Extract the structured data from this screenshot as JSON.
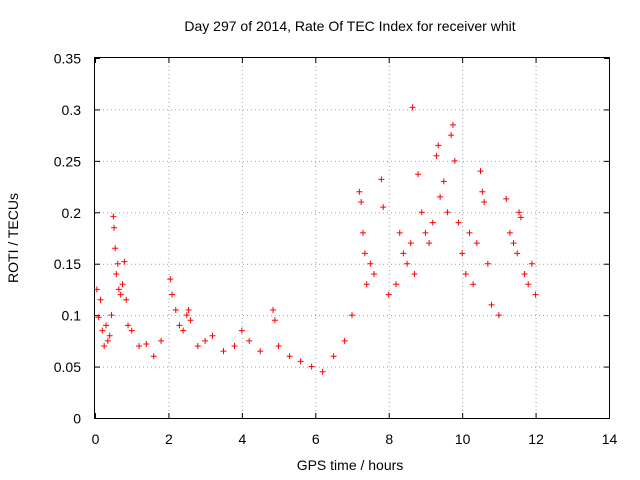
{
  "chart_data": {
    "type": "scatter",
    "title": "Day 297 of 2014, Rate Of TEC Index for receiver whit",
    "xlabel": "GPS time / hours",
    "ylabel": "ROTI / TECUs",
    "xlim": [
      0,
      14
    ],
    "ylim": [
      0,
      0.35
    ],
    "xticks": [
      "0",
      "2",
      "4",
      "6",
      "8",
      "10",
      "12",
      "14"
    ],
    "yticks": [
      "0",
      "0.05",
      "0.1",
      "0.15",
      "0.2",
      "0.25",
      "0.3",
      "0.35"
    ],
    "grid": true,
    "legend": "none",
    "marker": "plus",
    "color": "#ff0000",
    "series": [
      {
        "points": [
          [
            0.05,
            0.125
          ],
          [
            0.1,
            0.098
          ],
          [
            0.15,
            0.115
          ],
          [
            0.2,
            0.085
          ],
          [
            0.25,
            0.07
          ],
          [
            0.3,
            0.09
          ],
          [
            0.35,
            0.075
          ],
          [
            0.4,
            0.08
          ],
          [
            0.45,
            0.1
          ],
          [
            0.5,
            0.196
          ],
          [
            0.52,
            0.185
          ],
          [
            0.55,
            0.165
          ],
          [
            0.58,
            0.14
          ],
          [
            0.62,
            0.15
          ],
          [
            0.65,
            0.125
          ],
          [
            0.7,
            0.12
          ],
          [
            0.75,
            0.13
          ],
          [
            0.8,
            0.152
          ],
          [
            0.85,
            0.115
          ],
          [
            0.9,
            0.09
          ],
          [
            1.0,
            0.085
          ],
          [
            1.2,
            0.07
          ],
          [
            1.4,
            0.072
          ],
          [
            1.6,
            0.06
          ],
          [
            1.8,
            0.075
          ],
          [
            2.05,
            0.135
          ],
          [
            2.1,
            0.12
          ],
          [
            2.2,
            0.105
          ],
          [
            2.3,
            0.09
          ],
          [
            2.4,
            0.085
          ],
          [
            2.5,
            0.1
          ],
          [
            2.55,
            0.105
          ],
          [
            2.6,
            0.095
          ],
          [
            2.8,
            0.07
          ],
          [
            3.0,
            0.075
          ],
          [
            3.2,
            0.08
          ],
          [
            3.5,
            0.065
          ],
          [
            3.8,
            0.07
          ],
          [
            4.0,
            0.085
          ],
          [
            4.2,
            0.075
          ],
          [
            4.5,
            0.065
          ],
          [
            4.85,
            0.105
          ],
          [
            4.9,
            0.095
          ],
          [
            5.0,
            0.07
          ],
          [
            5.3,
            0.06
          ],
          [
            5.6,
            0.055
          ],
          [
            5.9,
            0.05
          ],
          [
            6.2,
            0.045
          ],
          [
            6.5,
            0.06
          ],
          [
            6.8,
            0.075
          ],
          [
            7.0,
            0.1
          ],
          [
            7.2,
            0.22
          ],
          [
            7.25,
            0.21
          ],
          [
            7.3,
            0.18
          ],
          [
            7.35,
            0.16
          ],
          [
            7.4,
            0.13
          ],
          [
            7.5,
            0.15
          ],
          [
            7.6,
            0.14
          ],
          [
            7.8,
            0.232
          ],
          [
            7.85,
            0.205
          ],
          [
            8.0,
            0.12
          ],
          [
            8.2,
            0.13
          ],
          [
            8.3,
            0.18
          ],
          [
            8.4,
            0.16
          ],
          [
            8.5,
            0.15
          ],
          [
            8.6,
            0.17
          ],
          [
            8.65,
            0.302
          ],
          [
            8.7,
            0.14
          ],
          [
            8.8,
            0.237
          ],
          [
            8.9,
            0.2
          ],
          [
            9.0,
            0.18
          ],
          [
            9.1,
            0.17
          ],
          [
            9.2,
            0.19
          ],
          [
            9.3,
            0.255
          ],
          [
            9.35,
            0.265
          ],
          [
            9.4,
            0.215
          ],
          [
            9.5,
            0.23
          ],
          [
            9.6,
            0.2
          ],
          [
            9.7,
            0.275
          ],
          [
            9.75,
            0.285
          ],
          [
            9.8,
            0.25
          ],
          [
            9.9,
            0.19
          ],
          [
            10.0,
            0.16
          ],
          [
            10.1,
            0.14
          ],
          [
            10.2,
            0.18
          ],
          [
            10.3,
            0.13
          ],
          [
            10.4,
            0.17
          ],
          [
            10.5,
            0.24
          ],
          [
            10.55,
            0.22
          ],
          [
            10.6,
            0.21
          ],
          [
            10.7,
            0.15
          ],
          [
            10.8,
            0.11
          ],
          [
            11.0,
            0.1
          ],
          [
            11.2,
            0.213
          ],
          [
            11.3,
            0.18
          ],
          [
            11.4,
            0.17
          ],
          [
            11.5,
            0.16
          ],
          [
            11.55,
            0.2
          ],
          [
            11.6,
            0.195
          ],
          [
            11.7,
            0.14
          ],
          [
            11.8,
            0.13
          ],
          [
            11.9,
            0.15
          ],
          [
            12.0,
            0.12
          ]
        ]
      }
    ]
  }
}
